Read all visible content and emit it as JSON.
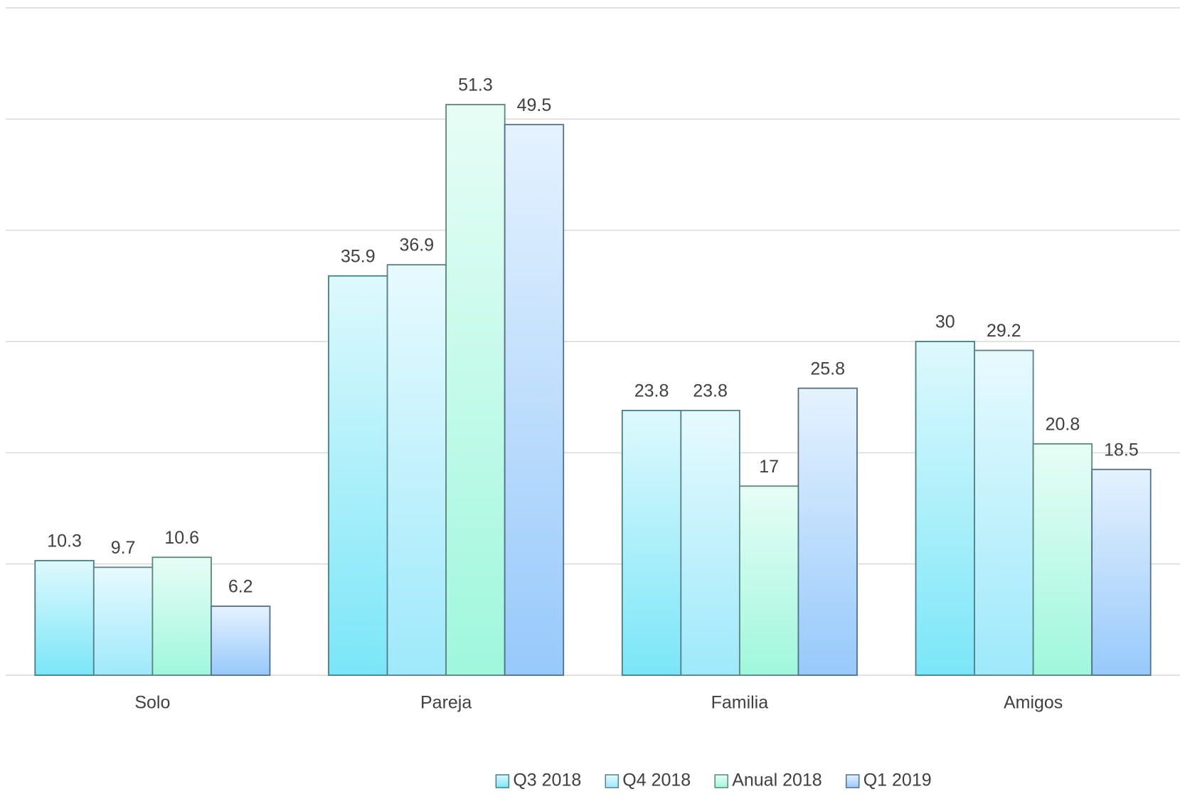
{
  "chart_data": {
    "type": "bar",
    "categories": [
      "Solo",
      "Pareja",
      "Familia",
      "Amigos"
    ],
    "series": [
      {
        "name": "Q3 2018",
        "color": "#7ae6f8",
        "values": [
          10.3,
          35.9,
          23.8,
          30
        ]
      },
      {
        "name": "Q4 2018",
        "color": "#9ee9fb",
        "values": [
          9.7,
          36.9,
          23.8,
          29.2
        ]
      },
      {
        "name": "Anual 2018",
        "color": "#9ff7dc",
        "values": [
          10.6,
          51.3,
          17,
          20.8
        ]
      },
      {
        "name": "Q1 2019",
        "color": "#97c9fb",
        "values": [
          6.2,
          49.5,
          25.8,
          18.5
        ]
      }
    ],
    "ylim": [
      0,
      60
    ],
    "yticks": [
      0,
      10,
      20,
      30,
      40,
      50,
      60
    ],
    "grid": true,
    "legend": "bottom"
  }
}
